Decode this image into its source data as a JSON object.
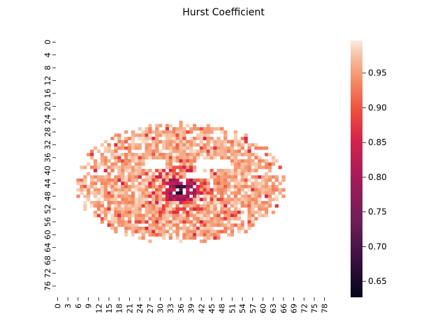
{
  "chart_data": {
    "type": "heatmap",
    "title": "Hurst Coefficient",
    "xlabel": "",
    "ylabel": "",
    "x_tick_labels": [
      "0",
      "3",
      "6",
      "9",
      "12",
      "15",
      "18",
      "21",
      "24",
      "27",
      "30",
      "33",
      "36",
      "39",
      "42",
      "45",
      "48",
      "51",
      "54",
      "57",
      "60",
      "63",
      "66",
      "69",
      "72",
      "75",
      "78"
    ],
    "y_tick_labels": [
      "0",
      "4",
      "8",
      "12",
      "16",
      "20",
      "24",
      "28",
      "32",
      "36",
      "40",
      "44",
      "48",
      "52",
      "56",
      "60",
      "64",
      "68",
      "72",
      "76"
    ],
    "grid_cols": 80,
    "grid_rows": 80,
    "colorbar": {
      "vmin": 0.627,
      "vmax": 0.997,
      "ticks": [
        "0.65",
        "0.70",
        "0.75",
        "0.80",
        "0.85",
        "0.90",
        "0.95"
      ],
      "colormap": "rocket"
    },
    "region": {
      "description_values": "Sparse axial brain-slice mask; most voxels near 0.93-0.99, lower values concentrated near center",
      "center_col": 36,
      "center_row": 44,
      "min_value_location": [
        36,
        46
      ],
      "typical_value": 0.96,
      "low_cluster_values": [
        0.63,
        0.68,
        0.72,
        0.78,
        0.82,
        0.86,
        0.88
      ]
    }
  }
}
